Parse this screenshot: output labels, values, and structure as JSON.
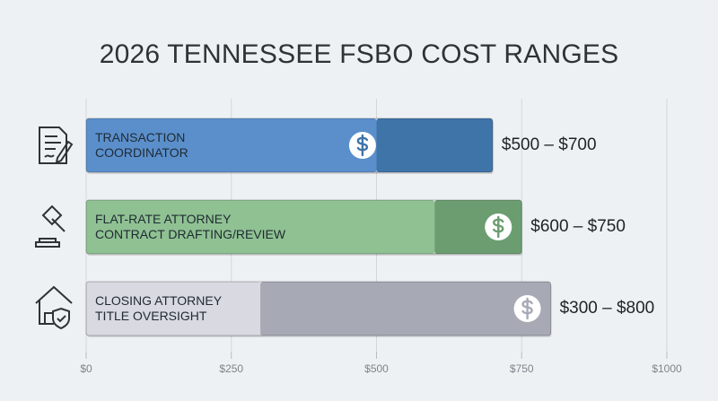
{
  "chart_data": {
    "type": "range-bar",
    "title": "2026 TENNESSEE FSBO COST RANGES",
    "categories": [
      "TRANSACTION\nCOORDINATOR",
      "FLAT-RATE ATTORNEY\nCONTRACT DRAFTING/REVIEW",
      "CLOSING ATTORNEY\nTITLE OVERSIGHT"
    ],
    "low": [
      500,
      600,
      300
    ],
    "high": [
      700,
      750,
      800
    ],
    "value_labels": [
      "$500 – $700",
      "$600 – $750",
      "$300 – $800"
    ],
    "colors": [
      [
        "#5b8fcc",
        "#3f74a8"
      ],
      [
        "#8fc192",
        "#6b9d70"
      ],
      [
        "#d8d9e1",
        "#a7a9b5"
      ]
    ],
    "xlim": [
      0,
      1000
    ],
    "xticks": [
      {
        "value": 0,
        "label": "$0"
      },
      {
        "value": 250,
        "label": "$250"
      },
      {
        "value": 500,
        "label": "$500"
      },
      {
        "value": 750,
        "label": "$750"
      },
      {
        "value": 1000,
        "label": "$1000"
      }
    ],
    "grid": true
  }
}
